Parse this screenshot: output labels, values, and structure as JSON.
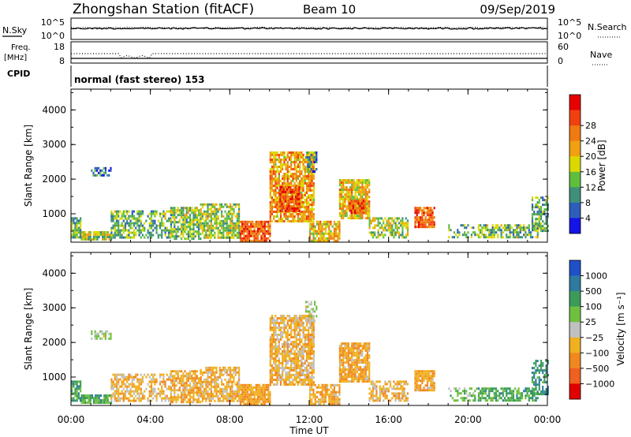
{
  "header": {
    "station": "Zhongshan Station (fitACF)",
    "beam": "Beam 10",
    "date": "09/Sep/2019"
  },
  "noise_panel": {
    "left_label": "N.Sky",
    "left_ticks": [
      "10^5",
      "10^0"
    ],
    "right_ticks": [
      "10^5",
      "10^0"
    ],
    "right_label": "N.Search"
  },
  "freq_panel": {
    "left_label_line1": "Freq.",
    "left_label_line2": "[MHz]",
    "left_ticks": [
      "18",
      "8"
    ],
    "right_ticks": [
      "60",
      "0"
    ],
    "right_label": "Nave"
  },
  "cpid_panel": {
    "label": "CPID",
    "mode_text": "normal (fast stereo) 153"
  },
  "x_axis": {
    "label": "Time UT",
    "ticks": [
      "00:00",
      "04:00",
      "08:00",
      "12:00",
      "16:00",
      "20:00",
      "00:00"
    ]
  },
  "chart_data": [
    {
      "type": "heatmap",
      "name": "power",
      "ylabel": "Slant Range [km]",
      "yticks": [
        "1000",
        "2000",
        "3000",
        "4000"
      ],
      "ylim": [
        180,
        4600
      ],
      "xlim_hours": [
        0,
        24
      ],
      "colorbar_label": "Power [dB]",
      "colorbar_ticks": [
        "4",
        "8",
        "12",
        "16",
        "20",
        "24",
        "28"
      ],
      "colorbar_colors": [
        "#1414e6",
        "#2e5eb8",
        "#3f8f7a",
        "#5fbe3c",
        "#d9d900",
        "#f0a010",
        "#ee7a10",
        "#f04010",
        "#e60000"
      ],
      "regions": [
        {
          "t": [
            0.0,
            0.5
          ],
          "r": [
            300,
            900
          ],
          "intensity": 0.35,
          "density": 0.8
        },
        {
          "t": [
            0.5,
            2.0
          ],
          "r": [
            250,
            500
          ],
          "intensity": 0.45,
          "density": 0.9
        },
        {
          "t": [
            1.0,
            2.0
          ],
          "r": [
            2100,
            2350
          ],
          "intensity": 0.2,
          "density": 0.7
        },
        {
          "t": [
            2.0,
            5.0
          ],
          "r": [
            300,
            1100
          ],
          "intensity": 0.35,
          "density": 0.6
        },
        {
          "t": [
            5.0,
            6.5
          ],
          "r": [
            300,
            1200
          ],
          "intensity": 0.4,
          "density": 0.7
        },
        {
          "t": [
            6.5,
            8.5
          ],
          "r": [
            300,
            1300
          ],
          "intensity": 0.45,
          "density": 0.75
        },
        {
          "t": [
            8.5,
            10.0
          ],
          "r": [
            250,
            800
          ],
          "intensity": 0.8,
          "density": 0.9
        },
        {
          "t": [
            10.0,
            12.2
          ],
          "r": [
            800,
            2800
          ],
          "intensity": 0.65,
          "density": 0.8
        },
        {
          "t": [
            10.5,
            11.5
          ],
          "r": [
            1100,
            1800
          ],
          "intensity": 0.85,
          "density": 0.9
        },
        {
          "t": [
            11.8,
            12.4
          ],
          "r": [
            2200,
            2800
          ],
          "intensity": 0.25,
          "density": 0.6
        },
        {
          "t": [
            12.0,
            13.5
          ],
          "r": [
            250,
            800
          ],
          "intensity": 0.6,
          "density": 0.8
        },
        {
          "t": [
            13.5,
            15.0
          ],
          "r": [
            900,
            2000
          ],
          "intensity": 0.6,
          "density": 0.85
        },
        {
          "t": [
            14.0,
            14.8
          ],
          "r": [
            1000,
            1400
          ],
          "intensity": 0.85,
          "density": 0.9
        },
        {
          "t": [
            15.0,
            17.0
          ],
          "r": [
            300,
            900
          ],
          "intensity": 0.45,
          "density": 0.6
        },
        {
          "t": [
            17.3,
            18.3
          ],
          "r": [
            600,
            1200
          ],
          "intensity": 0.8,
          "density": 0.85
        },
        {
          "t": [
            19.0,
            20.5
          ],
          "r": [
            300,
            700
          ],
          "intensity": 0.3,
          "density": 0.4
        },
        {
          "t": [
            20.5,
            23.5
          ],
          "r": [
            300,
            700
          ],
          "intensity": 0.35,
          "density": 0.7
        },
        {
          "t": [
            23.2,
            24.0
          ],
          "r": [
            500,
            1500
          ],
          "intensity": 0.3,
          "density": 0.6
        }
      ]
    },
    {
      "type": "heatmap",
      "name": "velocity",
      "ylabel": "Slant Range [km]",
      "yticks": [
        "1000",
        "2000",
        "3000",
        "4000"
      ],
      "ylim": [
        180,
        4600
      ],
      "xlim_hours": [
        0,
        24
      ],
      "colorbar_label": "Velocity [m s⁻¹]",
      "colorbar_ticks": [
        "1000",
        "500",
        "100",
        "25",
        "−25",
        "−100",
        "−500",
        "−1000"
      ],
      "colorbar_colors": [
        "#2050c8",
        "#2e7aa0",
        "#3b9c5a",
        "#70c040",
        "#c0c0c0",
        "#f0b020",
        "#f08820",
        "#f06020",
        "#e00000"
      ],
      "regions": [
        {
          "t": [
            0.0,
            0.5
          ],
          "r": [
            300,
            900
          ],
          "v": 0.25,
          "density": 0.7
        },
        {
          "t": [
            0.5,
            2.0
          ],
          "r": [
            250,
            500
          ],
          "v": 0.3,
          "density": 0.9
        },
        {
          "t": [
            1.0,
            2.0
          ],
          "r": [
            2100,
            2350
          ],
          "v": 0.45,
          "density": 0.7
        },
        {
          "t": [
            2.0,
            5.0
          ],
          "r": [
            300,
            1100
          ],
          "v": 0.62,
          "density": 0.6
        },
        {
          "t": [
            5.0,
            6.5
          ],
          "r": [
            300,
            1200
          ],
          "v": 0.66,
          "density": 0.7
        },
        {
          "t": [
            6.5,
            8.5
          ],
          "r": [
            300,
            1300
          ],
          "v": 0.64,
          "density": 0.75
        },
        {
          "t": [
            8.5,
            10.0
          ],
          "r": [
            250,
            800
          ],
          "v": 0.68,
          "density": 0.9
        },
        {
          "t": [
            10.0,
            12.2
          ],
          "r": [
            800,
            2800
          ],
          "v": 0.62,
          "density": 0.8
        },
        {
          "t": [
            11.8,
            12.4
          ],
          "r": [
            2600,
            3200
          ],
          "v": 0.45,
          "density": 0.5
        },
        {
          "t": [
            12.0,
            13.5
          ],
          "r": [
            250,
            800
          ],
          "v": 0.66,
          "density": 0.8
        },
        {
          "t": [
            13.5,
            15.0
          ],
          "r": [
            900,
            2000
          ],
          "v": 0.66,
          "density": 0.85
        },
        {
          "t": [
            15.0,
            17.0
          ],
          "r": [
            300,
            900
          ],
          "v": 0.64,
          "density": 0.6
        },
        {
          "t": [
            17.3,
            18.3
          ],
          "r": [
            600,
            1200
          ],
          "v": 0.66,
          "density": 0.85
        },
        {
          "t": [
            19.0,
            20.5
          ],
          "r": [
            300,
            700
          ],
          "v": 0.4,
          "density": 0.4
        },
        {
          "t": [
            20.5,
            23.5
          ],
          "r": [
            300,
            700
          ],
          "v": 0.28,
          "density": 0.7
        },
        {
          "t": [
            23.2,
            24.0
          ],
          "r": [
            500,
            1500
          ],
          "v": 0.2,
          "density": 0.6
        }
      ]
    }
  ]
}
